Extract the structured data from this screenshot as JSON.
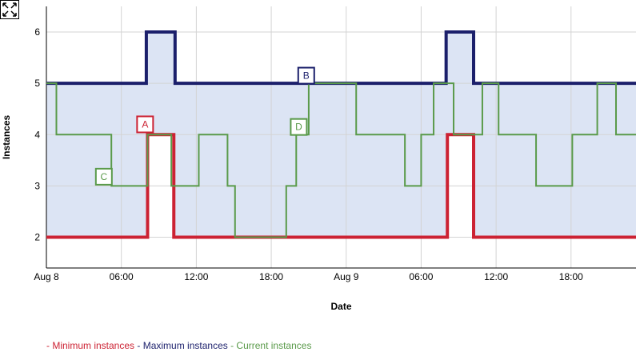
{
  "chart_data": {
    "type": "line",
    "step": true,
    "xlabel": "Date",
    "ylabel": "Instances",
    "x_ticks": [
      "Aug 8",
      "06:00",
      "12:00",
      "18:00",
      "Aug 9",
      "06:00",
      "12:00",
      "18:00"
    ],
    "y_ticks": [
      "2",
      "3",
      "4",
      "5",
      "6"
    ],
    "xlim_hours": [
      0,
      47.2
    ],
    "ylim": [
      1.4,
      6.5
    ],
    "grid": true,
    "fill_between": {
      "lower": "Minimum instances",
      "upper": "Maximum instances",
      "color": "#dce4f4"
    },
    "series": [
      {
        "name": "Minimum instances",
        "color": "#cc2233",
        "points": [
          [
            0,
            2
          ],
          [
            8.1,
            2
          ],
          [
            8.1,
            4
          ],
          [
            10.2,
            4
          ],
          [
            10.2,
            2
          ],
          [
            32.1,
            2
          ],
          [
            32.1,
            4
          ],
          [
            34.2,
            4
          ],
          [
            34.2,
            2
          ],
          [
            47.2,
            2
          ]
        ]
      },
      {
        "name": "Maximum instances",
        "color": "#1b1f6b",
        "points": [
          [
            0,
            5
          ],
          [
            8,
            5
          ],
          [
            8,
            6
          ],
          [
            10.3,
            6
          ],
          [
            10.3,
            5
          ],
          [
            32,
            5
          ],
          [
            32,
            6
          ],
          [
            34.2,
            6
          ],
          [
            34.2,
            5
          ],
          [
            47.2,
            5
          ]
        ]
      },
      {
        "name": "Current instances",
        "color": "#5a9a4a",
        "points": [
          [
            0,
            5
          ],
          [
            0.8,
            5
          ],
          [
            0.8,
            4
          ],
          [
            5.2,
            4
          ],
          [
            5.2,
            3
          ],
          [
            8.1,
            3
          ],
          [
            8.1,
            4
          ],
          [
            10,
            4
          ],
          [
            10,
            3
          ],
          [
            12.2,
            3
          ],
          [
            12.2,
            4
          ],
          [
            14.5,
            4
          ],
          [
            14.5,
            3
          ],
          [
            15.1,
            3
          ],
          [
            15.1,
            2
          ],
          [
            19.2,
            2
          ],
          [
            19.2,
            3
          ],
          [
            20,
            3
          ],
          [
            20,
            4
          ],
          [
            21,
            4
          ],
          [
            21,
            5
          ],
          [
            24.8,
            5
          ],
          [
            24.8,
            4
          ],
          [
            28.7,
            4
          ],
          [
            28.7,
            3
          ],
          [
            30,
            3
          ],
          [
            30,
            4
          ],
          [
            31,
            4
          ],
          [
            31,
            5
          ],
          [
            32.6,
            5
          ],
          [
            32.6,
            4
          ],
          [
            34.9,
            4
          ],
          [
            34.9,
            5
          ],
          [
            36.2,
            5
          ],
          [
            36.2,
            4
          ],
          [
            39.2,
            4
          ],
          [
            39.2,
            3
          ],
          [
            42.1,
            3
          ],
          [
            42.1,
            4
          ],
          [
            44.1,
            4
          ],
          [
            44.1,
            5
          ],
          [
            45.6,
            5
          ],
          [
            45.6,
            4
          ],
          [
            47.2,
            4
          ]
        ]
      }
    ],
    "annotations": [
      {
        "label": "A",
        "x": 7.9,
        "y": 4.2,
        "color": "#cc2233"
      },
      {
        "label": "B",
        "x": 20.8,
        "y": 5.15,
        "color": "#1b1f6b"
      },
      {
        "label": "C",
        "x": 4.6,
        "y": 3.18,
        "color": "#5a9a4a"
      },
      {
        "label": "D",
        "x": 20.2,
        "y": 4.15,
        "color": "#5a9a4a"
      }
    ]
  },
  "legend": [
    {
      "label": "- Minimum instances",
      "color": "#cc2233"
    },
    {
      "label": "- Maximum instances",
      "color": "#1b1f6b"
    },
    {
      "label": "- Current instances",
      "color": "#5a9a4a"
    }
  ],
  "toolbar": {
    "expand_icon": "expand-icon"
  }
}
